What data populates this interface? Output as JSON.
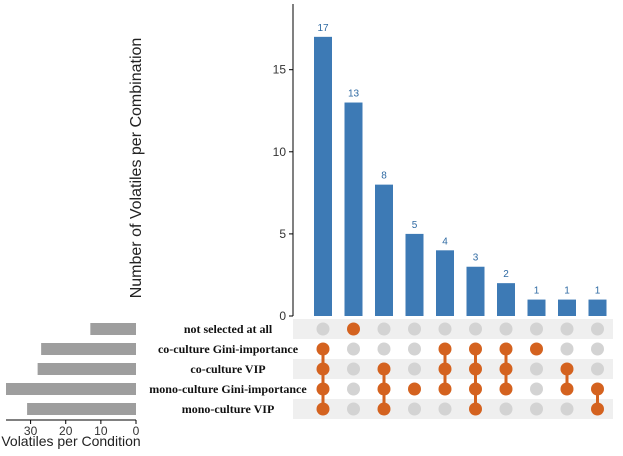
{
  "chart_data": {
    "type": "bar",
    "title": "",
    "ylabel": "Number of Volatiles per Combination",
    "set_xlabel": "Volatiles per Condition",
    "ylim": [
      0,
      19
    ],
    "yticks": [
      "0",
      "5",
      "10",
      "15"
    ],
    "set_xticks": [
      "30",
      "20",
      "10",
      "0"
    ],
    "set_xlim": [
      0,
      37
    ],
    "colors": {
      "bar": "#3d7ab5",
      "dot": "#d4621f",
      "empty_dot": "#d3d3d3",
      "set_bar": "#9e9e9e",
      "label": "#2f6aa3"
    },
    "sets": [
      {
        "name": "not selected at all",
        "size": 13
      },
      {
        "name": "co-culture Gini-importance",
        "size": 27
      },
      {
        "name": "co-culture VIP",
        "size": 28
      },
      {
        "name": "mono-culture Gini-importance",
        "size": 37
      },
      {
        "name": "mono-culture VIP",
        "size": 31
      }
    ],
    "intersections": [
      {
        "value": 17,
        "label": "17",
        "members": [
          1,
          2,
          3,
          4
        ]
      },
      {
        "value": 13,
        "label": "13",
        "members": [
          0
        ]
      },
      {
        "value": 8,
        "label": "8",
        "members": [
          2,
          3,
          4
        ]
      },
      {
        "value": 5,
        "label": "5",
        "members": [
          3
        ]
      },
      {
        "value": 4,
        "label": "4",
        "members": [
          1,
          2,
          3
        ]
      },
      {
        "value": 3,
        "label": "3",
        "members": [
          1,
          2,
          3,
          4
        ]
      },
      {
        "value": 2,
        "label": "2",
        "members": [
          1,
          2,
          3
        ]
      },
      {
        "value": 1,
        "label": "1",
        "members": [
          1
        ]
      },
      {
        "value": 1,
        "label": "1",
        "members": [
          2,
          3
        ]
      },
      {
        "value": 1,
        "label": "1",
        "members": [
          3,
          4
        ]
      }
    ]
  }
}
